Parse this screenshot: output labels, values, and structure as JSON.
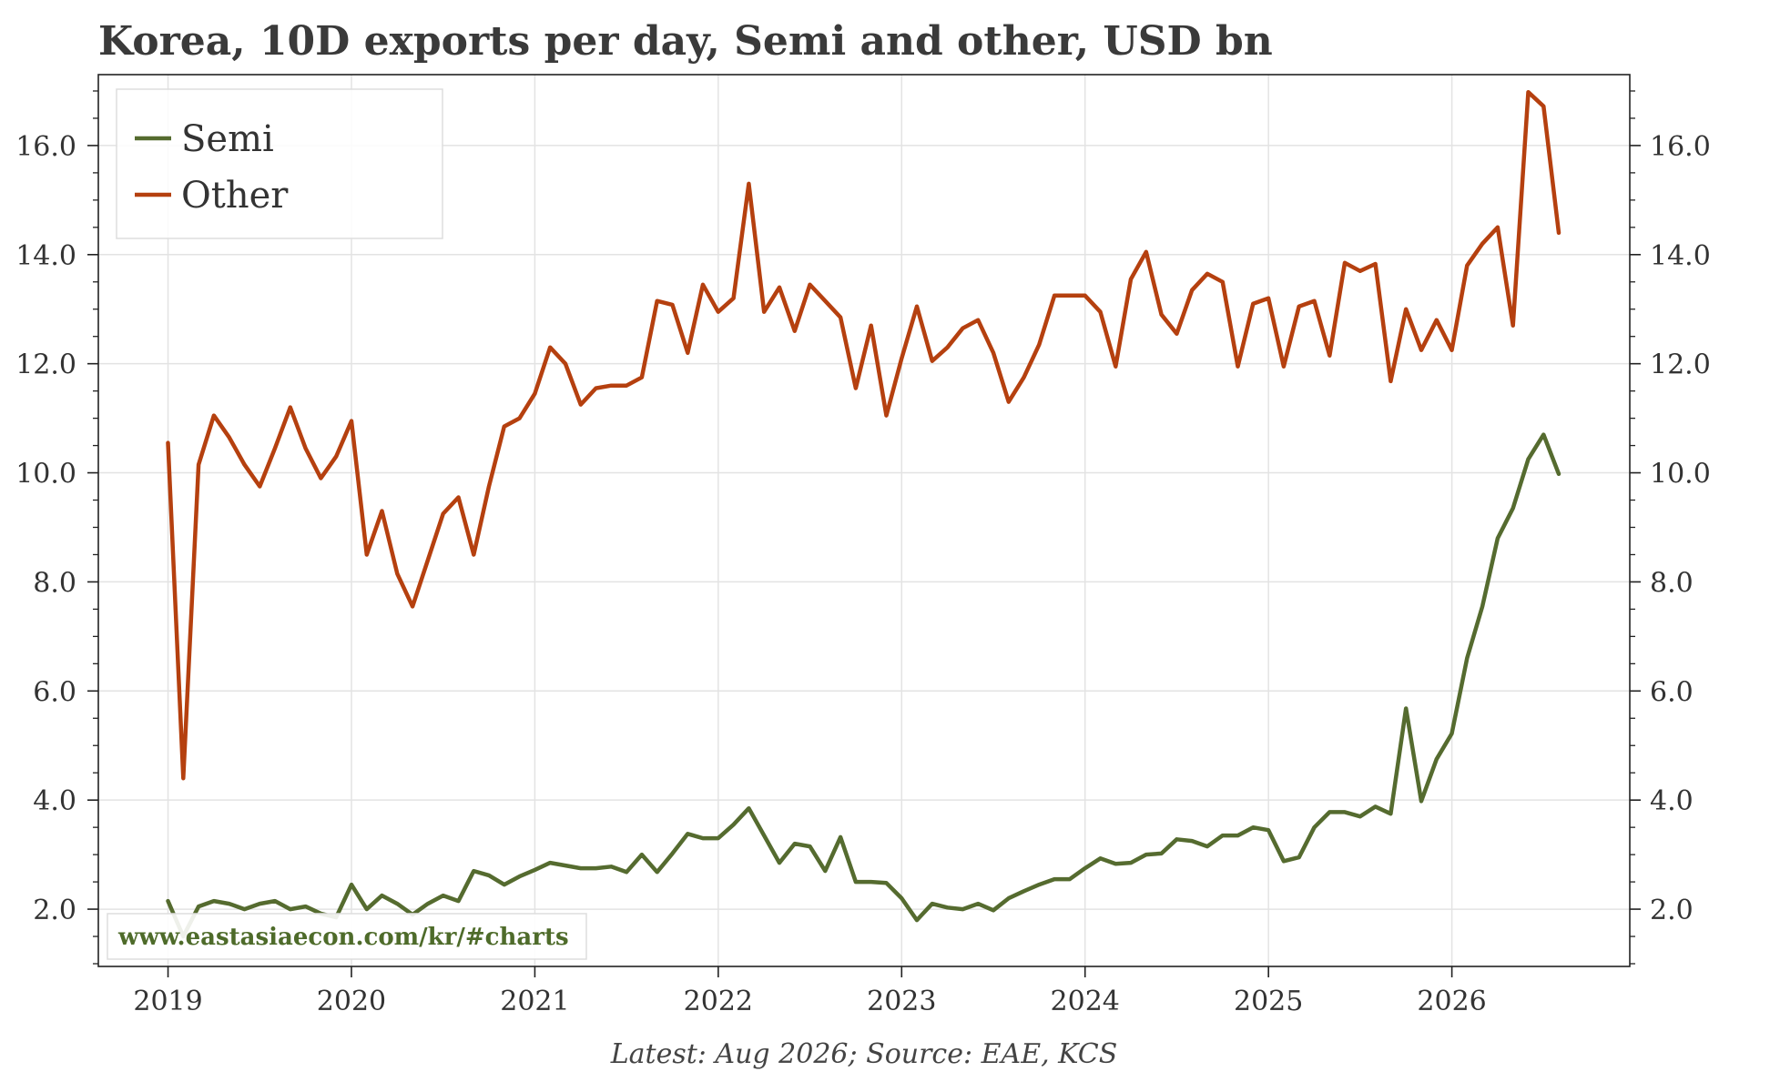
{
  "chart_data": {
    "type": "line",
    "title": "Korea, 10D exports per day, Semi and other, USD bn",
    "source": "Latest: Aug 2026; Source: EAE, KCS",
    "watermark": "www.eastasiaecon.com/kr/#charts",
    "xlim": [
      2018.62,
      2026.97
    ],
    "ylim": [
      0.95,
      17.3
    ],
    "x_ticks": [
      2019,
      2020,
      2021,
      2022,
      2023,
      2024,
      2025,
      2026
    ],
    "x_tick_labels": [
      "2019",
      "2020",
      "2021",
      "2022",
      "2023",
      "2024",
      "2025",
      "2026"
    ],
    "y_ticks": [
      2,
      4,
      6,
      8,
      10,
      12,
      14,
      16
    ],
    "y_tick_labels": [
      "2.0",
      "4.0",
      "6.0",
      "8.0",
      "10.0",
      "12.0",
      "14.0",
      "16.0"
    ],
    "grid": true,
    "legend": "top-left",
    "colors": {
      "semi": "#556b2f",
      "other": "#b5400f",
      "grid": "#e3e3e3",
      "axis": "#222222",
      "watermark": "#4e6b2a"
    },
    "x_start": 2019.0,
    "x_step": 0.08333,
    "series": [
      {
        "name": "Semi",
        "color": "#556b2f",
        "values": [
          2.15,
          1.5,
          2.05,
          2.15,
          2.1,
          2.0,
          2.1,
          2.15,
          2.0,
          2.05,
          1.92,
          1.85,
          2.45,
          2.0,
          2.25,
          2.1,
          1.9,
          2.1,
          2.25,
          2.15,
          2.7,
          2.62,
          2.45,
          2.6,
          2.72,
          2.85,
          2.8,
          2.75,
          2.75,
          2.78,
          2.68,
          3.0,
          2.68,
          3.02,
          3.38,
          3.3,
          3.3,
          3.55,
          3.85,
          3.35,
          2.85,
          3.2,
          3.15,
          2.7,
          3.32,
          2.5,
          2.5,
          2.48,
          2.2,
          1.8,
          2.1,
          2.03,
          2.0,
          2.1,
          1.98,
          2.2,
          2.33,
          2.45,
          2.55,
          2.55,
          2.75,
          2.93,
          2.83,
          2.85,
          3.0,
          3.02,
          3.28,
          3.25,
          3.15,
          3.35,
          3.35,
          3.5,
          3.45,
          2.88,
          2.95,
          3.5,
          3.78,
          3.78,
          3.7,
          3.88,
          3.75,
          5.68,
          3.98,
          4.75,
          5.22,
          6.6,
          7.55,
          8.8,
          9.35,
          10.25,
          10.7,
          9.98
        ]
      },
      {
        "name": "Other",
        "color": "#b5400f",
        "values": [
          10.55,
          4.4,
          10.15,
          11.05,
          10.65,
          10.15,
          9.75,
          10.45,
          11.2,
          10.45,
          9.9,
          10.3,
          10.95,
          8.5,
          9.3,
          8.15,
          7.55,
          8.4,
          9.25,
          9.55,
          8.5,
          9.75,
          10.85,
          11.0,
          11.45,
          12.3,
          12.0,
          11.25,
          11.55,
          11.6,
          11.6,
          11.75,
          13.15,
          13.08,
          12.2,
          13.45,
          12.95,
          13.2,
          15.3,
          12.95,
          13.4,
          12.6,
          13.45,
          13.15,
          12.85,
          11.55,
          12.7,
          11.05,
          12.1,
          13.05,
          12.05,
          12.3,
          12.65,
          12.8,
          12.2,
          11.3,
          11.75,
          12.35,
          13.25,
          13.25,
          13.25,
          12.95,
          11.95,
          13.55,
          14.05,
          12.9,
          12.55,
          13.35,
          13.65,
          13.5,
          11.95,
          13.1,
          13.2,
          11.95,
          13.05,
          13.15,
          12.15,
          13.85,
          13.7,
          13.83,
          11.68,
          13.0,
          12.25,
          12.8,
          12.25,
          13.8,
          14.2,
          14.5,
          12.7,
          16.98,
          16.72,
          14.4
        ]
      }
    ]
  }
}
